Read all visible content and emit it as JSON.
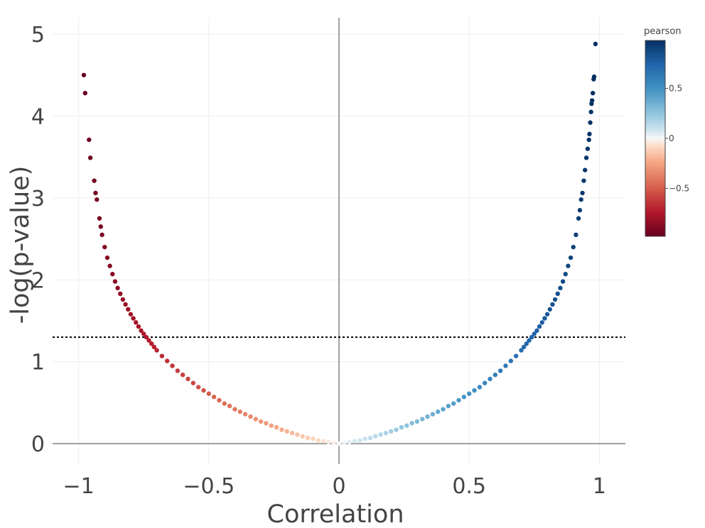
{
  "chart_data": {
    "type": "scatter",
    "title": "",
    "xlabel": "Correlation",
    "ylabel": "-log(p-value)",
    "xlim": [
      -1.1,
      1.1
    ],
    "ylim": [
      -0.25,
      5.2
    ],
    "xticks": [
      {
        "value": -1,
        "label": "−1"
      },
      {
        "value": -0.5,
        "label": "−0.5"
      },
      {
        "value": 0,
        "label": "0"
      },
      {
        "value": 0.5,
        "label": "0.5"
      },
      {
        "value": 1,
        "label": "1"
      }
    ],
    "yticks": [
      {
        "value": 0,
        "label": "0"
      },
      {
        "value": 1,
        "label": "1"
      },
      {
        "value": 2,
        "label": "2"
      },
      {
        "value": 3,
        "label": "3"
      },
      {
        "value": 4,
        "label": "4"
      },
      {
        "value": 5,
        "label": "5"
      }
    ],
    "grid": true,
    "threshold_line": {
      "y": 1.3,
      "style": "dotted",
      "color": "#000000"
    },
    "colorbar": {
      "title": "pearson",
      "colorscale": "RdBu",
      "range": [
        -0.98,
        0.98
      ],
      "ticks": [
        {
          "value": 0.5,
          "label": "0.5"
        },
        {
          "value": 0,
          "label": "0"
        },
        {
          "value": -0.5,
          "label": "−0.5"
        }
      ]
    },
    "series": [
      {
        "color_by": "x",
        "x": [
          -0.98,
          -0.975,
          -0.96,
          -0.955,
          -0.94,
          -0.935,
          -0.93,
          -0.92,
          -0.915,
          -0.91,
          -0.9,
          -0.89,
          -0.88,
          -0.87,
          -0.86,
          -0.85,
          -0.84,
          -0.83,
          -0.82,
          -0.81,
          -0.8,
          -0.79,
          -0.78,
          -0.77,
          -0.76,
          -0.75,
          -0.74,
          -0.73,
          -0.72,
          -0.71,
          -0.7,
          -0.68,
          -0.66,
          -0.64,
          -0.62,
          -0.6,
          -0.58,
          -0.56,
          -0.54,
          -0.52,
          -0.5,
          -0.48,
          -0.46,
          -0.44,
          -0.42,
          -0.4,
          -0.38,
          -0.36,
          -0.34,
          -0.32,
          -0.3,
          -0.28,
          -0.26,
          -0.24,
          -0.22,
          -0.2,
          -0.18,
          -0.16,
          -0.14,
          -0.12,
          -0.1,
          -0.08,
          -0.06,
          -0.04,
          -0.02,
          0,
          0.02,
          0.04,
          0.06,
          0.08,
          0.1,
          0.12,
          0.14,
          0.16,
          0.18,
          0.2,
          0.22,
          0.24,
          0.26,
          0.28,
          0.3,
          0.32,
          0.34,
          0.36,
          0.38,
          0.4,
          0.42,
          0.44,
          0.46,
          0.48,
          0.5,
          0.52,
          0.54,
          0.56,
          0.58,
          0.6,
          0.62,
          0.64,
          0.66,
          0.68,
          0.7,
          0.71,
          0.72,
          0.73,
          0.74,
          0.75,
          0.76,
          0.77,
          0.78,
          0.79,
          0.8,
          0.81,
          0.82,
          0.83,
          0.84,
          0.85,
          0.86,
          0.87,
          0.88,
          0.89,
          0.9,
          0.91,
          0.92,
          0.925,
          0.93,
          0.935,
          0.94,
          0.945,
          0.95,
          0.955,
          0.96,
          0.962,
          0.965,
          0.968,
          0.97,
          0.972,
          0.975,
          0.978,
          0.98,
          0.985
        ],
        "y": [
          4.5,
          4.28,
          3.71,
          3.49,
          3.21,
          3.06,
          2.98,
          2.75,
          2.65,
          2.55,
          2.4,
          2.27,
          2.17,
          2.07,
          1.98,
          1.9,
          1.83,
          1.76,
          1.7,
          1.64,
          1.58,
          1.53,
          1.48,
          1.43,
          1.38,
          1.34,
          1.3,
          1.26,
          1.22,
          1.18,
          1.14,
          1.07,
          1.01,
          0.95,
          0.89,
          0.84,
          0.79,
          0.74,
          0.69,
          0.65,
          0.61,
          0.57,
          0.53,
          0.49,
          0.46,
          0.42,
          0.39,
          0.36,
          0.33,
          0.3,
          0.27,
          0.25,
          0.22,
          0.2,
          0.17,
          0.15,
          0.13,
          0.11,
          0.09,
          0.07,
          0.06,
          0.04,
          0.03,
          0.02,
          0.01,
          0,
          0.01,
          0.02,
          0.03,
          0.04,
          0.06,
          0.07,
          0.09,
          0.11,
          0.13,
          0.15,
          0.17,
          0.2,
          0.22,
          0.25,
          0.27,
          0.3,
          0.33,
          0.36,
          0.39,
          0.42,
          0.46,
          0.49,
          0.53,
          0.57,
          0.61,
          0.65,
          0.69,
          0.74,
          0.79,
          0.84,
          0.89,
          0.95,
          1.01,
          1.07,
          1.14,
          1.18,
          1.22,
          1.26,
          1.3,
          1.34,
          1.38,
          1.43,
          1.48,
          1.53,
          1.58,
          1.64,
          1.7,
          1.76,
          1.83,
          1.9,
          1.98,
          2.07,
          2.17,
          2.27,
          2.4,
          2.55,
          2.75,
          2.85,
          2.98,
          3.06,
          3.21,
          3.34,
          3.49,
          3.6,
          3.71,
          3.78,
          3.92,
          4.05,
          4.15,
          4.19,
          4.28,
          4.45,
          4.48,
          4.88
        ]
      }
    ]
  }
}
